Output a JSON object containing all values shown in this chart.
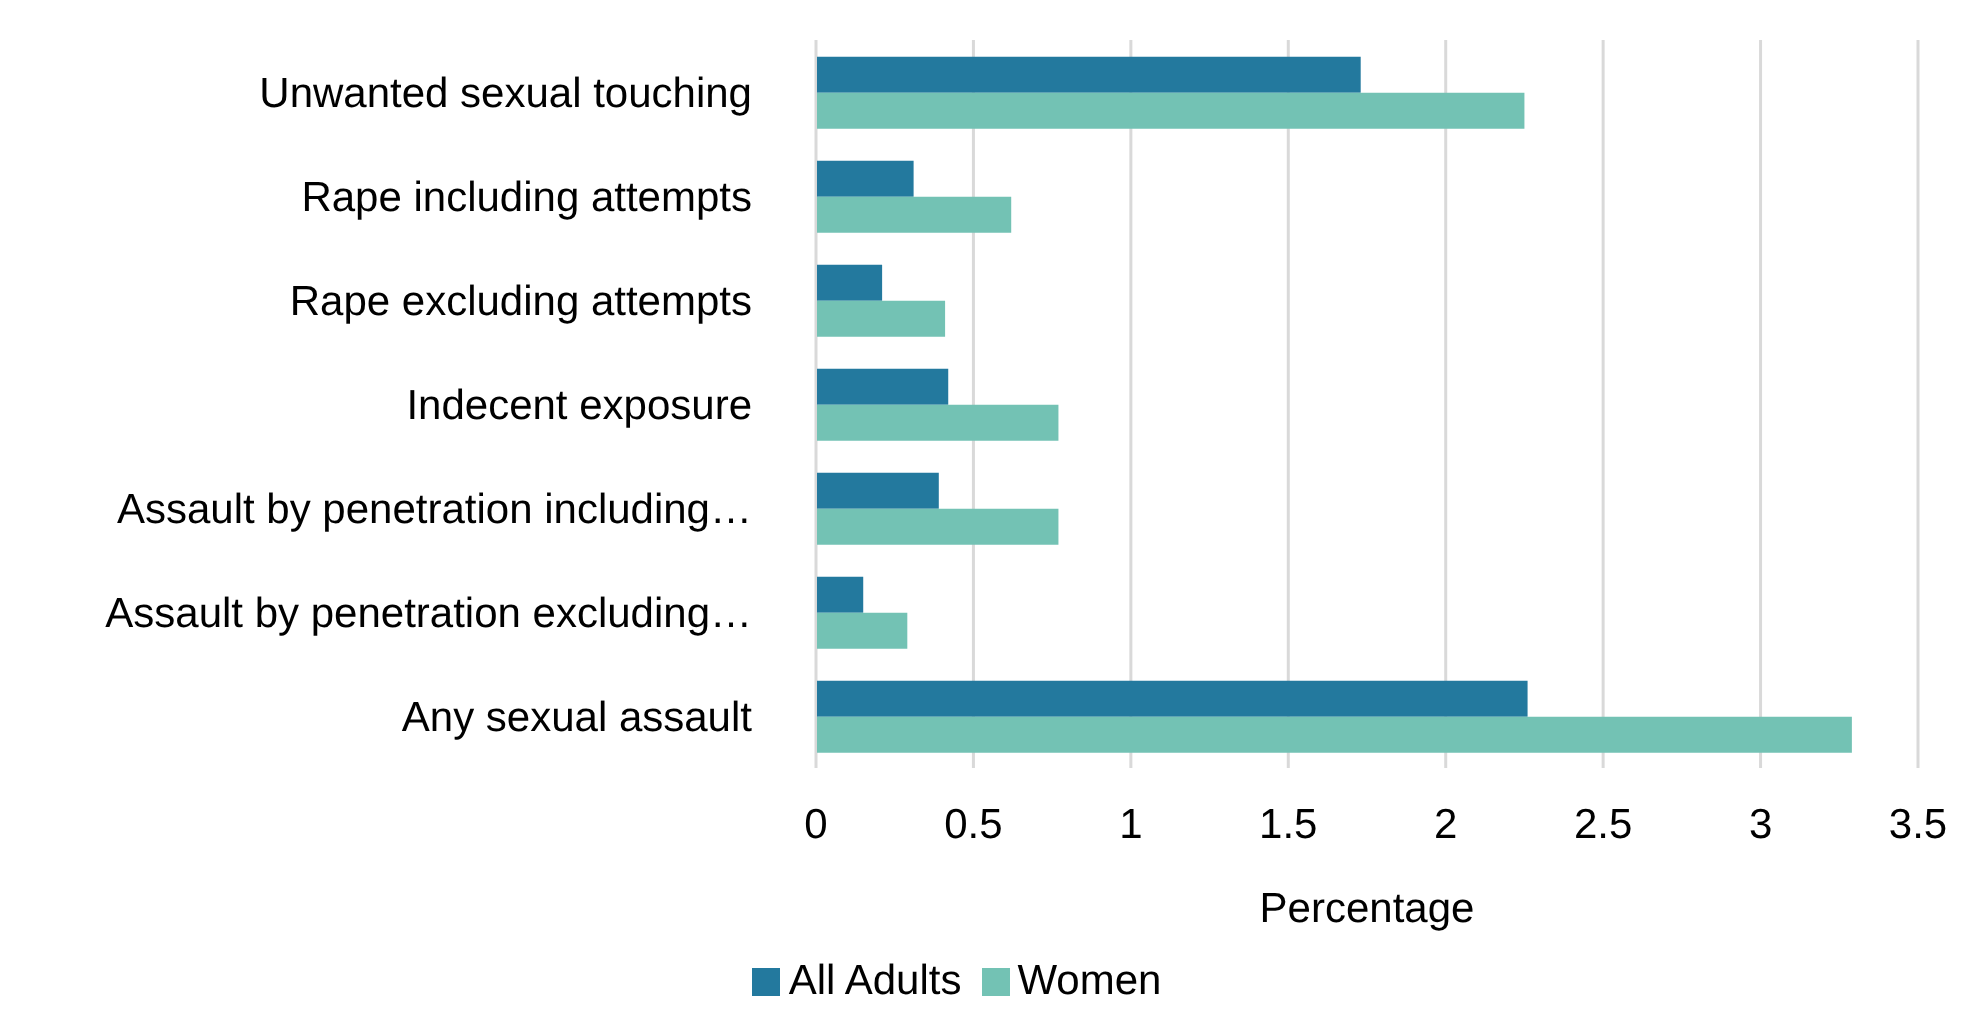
{
  "chart_data": {
    "type": "bar",
    "orientation": "horizontal",
    "xlabel": "Percentage",
    "categories": [
      "Unwanted sexual touching",
      "Rape including attempts",
      "Rape excluding attempts",
      "Indecent exposure",
      "Assault by penetration including…",
      "Assault by penetration excluding…",
      "Any sexual assault"
    ],
    "series": [
      {
        "name": "All Adults",
        "color": "#23799e",
        "values": [
          1.73,
          0.31,
          0.21,
          0.42,
          0.39,
          0.15,
          2.26
        ]
      },
      {
        "name": "Women",
        "color": "#73c2b4",
        "values": [
          2.25,
          0.62,
          0.41,
          0.77,
          0.77,
          0.29,
          3.29
        ]
      }
    ],
    "xlim": [
      0,
      3.5
    ],
    "xticks": [
      0,
      0.5,
      1,
      1.5,
      2,
      2.5,
      3,
      3.5
    ],
    "grid": "x",
    "legend": "bottom"
  }
}
